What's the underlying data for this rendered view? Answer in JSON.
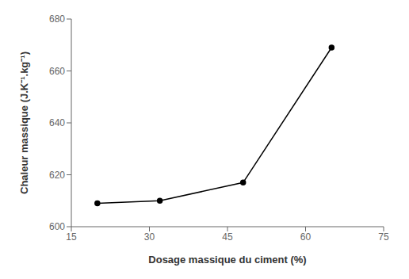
{
  "chart_data": {
    "type": "line",
    "x": [
      20,
      32,
      48,
      65
    ],
    "values": [
      609,
      610,
      617,
      669
    ],
    "xlabel": "Dosage massique du ciment (%)",
    "ylabel": "Chaleur massique (J.K⁻¹.kg⁻¹)",
    "xlim": [
      15,
      75
    ],
    "ylim": [
      600,
      680
    ],
    "xticks": [
      15,
      30,
      45,
      60,
      75
    ],
    "yticks": [
      600,
      620,
      640,
      660,
      680
    ],
    "color": "#000000",
    "marker": "circle",
    "grid": false
  }
}
